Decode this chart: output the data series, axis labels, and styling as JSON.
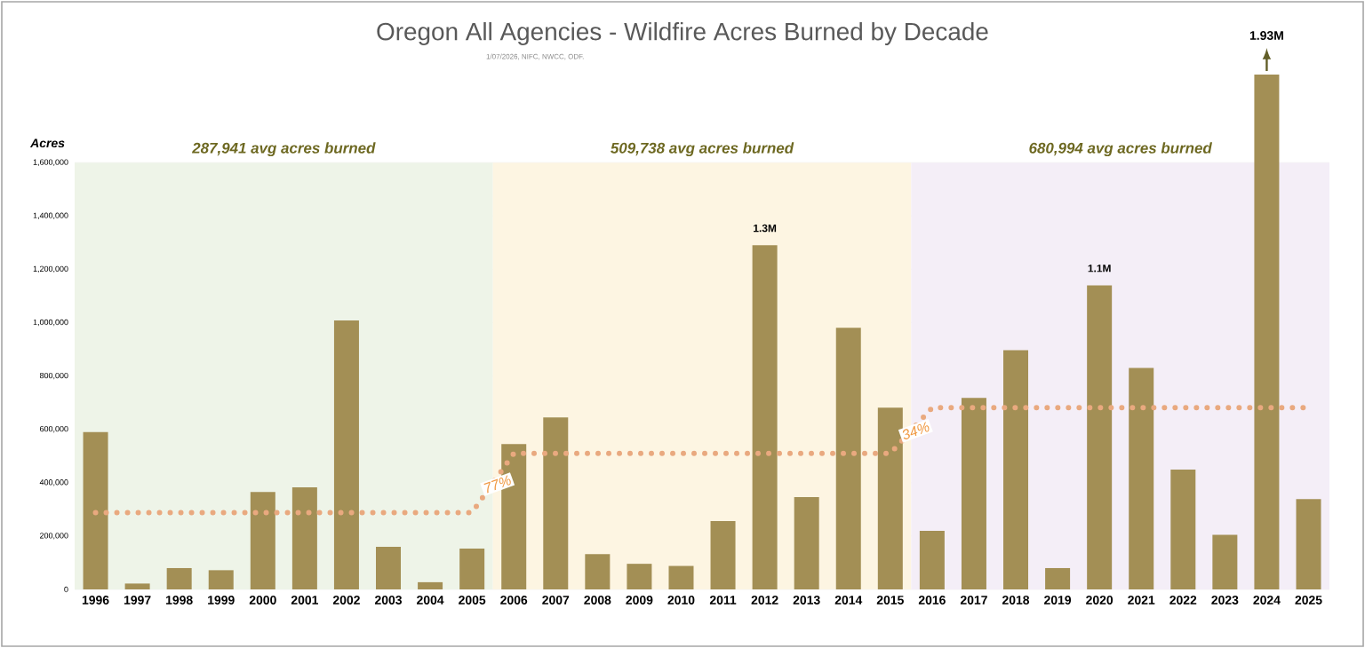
{
  "chart_data": {
    "type": "bar",
    "title": "Oregon All Agencies - Wildfire Acres Burned by Decade",
    "ylabel": "Acres",
    "categories": [
      "1996",
      "1997",
      "1998",
      "1999",
      "2000",
      "2001",
      "2002",
      "2003",
      "2004",
      "2005",
      "2006",
      "2007",
      "2008",
      "2009",
      "2010",
      "2011",
      "2012",
      "2013",
      "2014",
      "2015",
      "2016",
      "2017",
      "2018",
      "2019",
      "2020",
      "2021",
      "2022",
      "2023",
      "2024",
      "2025"
    ],
    "series": [
      {
        "color": "#a38f55",
        "values": [
          590000,
          22000,
          80000,
          72000,
          365000,
          383000,
          1008000,
          160000,
          27000,
          153000,
          545000,
          645000,
          132000,
          96000,
          88000,
          256000,
          1290000,
          346000,
          981000,
          681000,
          220000,
          718000,
          897000,
          80000,
          1140000,
          830000,
          449000,
          205000,
          1930000,
          339000
        ],
        "value_labels": [
          null,
          null,
          null,
          null,
          null,
          null,
          null,
          null,
          null,
          null,
          null,
          null,
          null,
          null,
          null,
          null,
          "1.3M",
          null,
          null,
          null,
          null,
          null,
          null,
          null,
          "1.1M",
          null,
          null,
          null,
          "1.93M",
          null
        ]
      },
      {
        "type": "line",
        "color": "#e9a97f",
        "line_style": "dotted",
        "marker": "none",
        "values": [
          287941,
          287941,
          287941,
          287941,
          287941,
          287941,
          287941,
          287941,
          287941,
          287941,
          509738,
          509738,
          509738,
          509738,
          509738,
          509738,
          509738,
          509738,
          509738,
          509738,
          680994,
          680994,
          680994,
          680994,
          680994,
          680994,
          680994,
          680994,
          680994,
          680994
        ]
      }
    ],
    "bands": [
      {
        "axis": "x",
        "from": "1996",
        "to": "2005",
        "label": "287,941 avg acres burned",
        "color": "#eef4e8"
      },
      {
        "axis": "x",
        "from": "2006",
        "to": "2015",
        "label": "509,738 avg acres burned",
        "color": "#fdf5e2"
      },
      {
        "axis": "x",
        "from": "2016",
        "to": "2025",
        "label": "680,994 avg acres burned",
        "color": "#f4eef7"
      }
    ],
    "annotations": [
      "1/07/2026, NIFC, NWCC, ODF.",
      {
        "text": "77%",
        "x": "2005",
        "y": 360000
      },
      {
        "text": "34%",
        "x": "2015",
        "y": 560000
      }
    ],
    "ylim": [
      0,
      1930000
    ],
    "yticks": [
      {
        "value": 0,
        "label": "0"
      },
      {
        "value": 200000,
        "label": "200,000"
      },
      {
        "value": 400000,
        "label": "400,000"
      },
      {
        "value": 600000,
        "label": "600,000"
      },
      {
        "value": 800000,
        "label": "800,000"
      },
      {
        "value": 1000000,
        "label": "1,000,000"
      },
      {
        "value": 1200000,
        "label": "1,200,000"
      },
      {
        "value": 1400000,
        "label": "1,400,000"
      },
      {
        "value": 1600000,
        "label": "1,600,000"
      }
    ],
    "grid": "y"
  }
}
